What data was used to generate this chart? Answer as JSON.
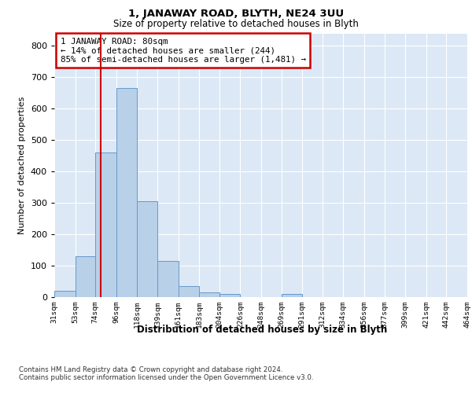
{
  "title": "1, JANAWAY ROAD, BLYTH, NE24 3UU",
  "subtitle": "Size of property relative to detached houses in Blyth",
  "xlabel": "Distribution of detached houses by size in Blyth",
  "ylabel": "Number of detached properties",
  "footer_line1": "Contains HM Land Registry data © Crown copyright and database right 2024.",
  "footer_line2": "Contains public sector information licensed under the Open Government Licence v3.0.",
  "annotation_title": "1 JANAWAY ROAD: 80sqm",
  "annotation_line1": "← 14% of detached houses are smaller (244)",
  "annotation_line2": "85% of semi-detached houses are larger (1,481) →",
  "bar_color": "#b8d0e8",
  "bar_edge_color": "#6699cc",
  "vline_color": "#cc0000",
  "vline_x": 80,
  "plot_bg_color": "#dce8f5",
  "ylim": [
    0,
    840
  ],
  "yticks": [
    0,
    100,
    200,
    300,
    400,
    500,
    600,
    700,
    800
  ],
  "bin_edges": [
    31,
    53,
    74,
    96,
    118,
    139,
    161,
    183,
    204,
    226,
    248,
    269,
    291,
    312,
    334,
    356,
    377,
    399,
    421,
    442,
    464
  ],
  "bin_values": [
    18,
    128,
    460,
    665,
    305,
    115,
    35,
    13,
    10,
    0,
    0,
    8,
    0,
    0,
    0,
    0,
    0,
    0,
    0,
    0
  ]
}
